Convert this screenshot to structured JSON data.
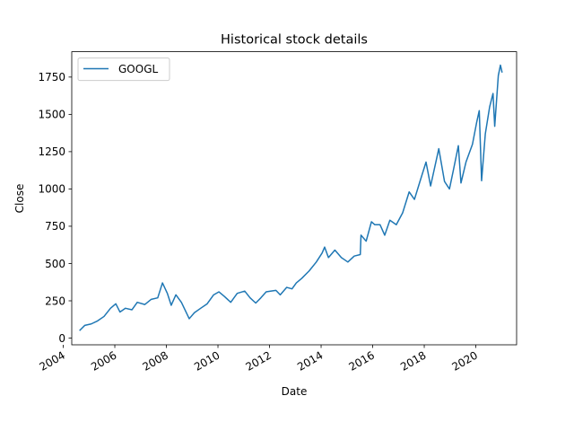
{
  "chart_data": {
    "type": "line",
    "title": "Historical stock details",
    "xlabel": "Date",
    "ylabel": "Close",
    "xlim": [
      "2004-05-01",
      "2021-08-01"
    ],
    "ylim": [
      -45,
      1920
    ],
    "x_ticks": [
      {
        "date": "2004-01-01",
        "label": "2004"
      },
      {
        "date": "2006-01-01",
        "label": "2006"
      },
      {
        "date": "2008-01-01",
        "label": "2008"
      },
      {
        "date": "2010-01-01",
        "label": "2010"
      },
      {
        "date": "2012-01-01",
        "label": "2012"
      },
      {
        "date": "2014-01-01",
        "label": "2014"
      },
      {
        "date": "2016-01-01",
        "label": "2016"
      },
      {
        "date": "2018-01-01",
        "label": "2018"
      },
      {
        "date": "2020-01-01",
        "label": "2020"
      }
    ],
    "y_ticks": [
      0,
      250,
      500,
      750,
      1000,
      1250,
      1500,
      1750
    ],
    "grid": false,
    "legend": {
      "position": "top-left"
    },
    "series": [
      {
        "name": "GOOGL",
        "color": "#1f77b4",
        "points": [
          [
            "2004-08-19",
            50
          ],
          [
            "2004-11-01",
            85
          ],
          [
            "2005-02-01",
            95
          ],
          [
            "2005-05-01",
            115
          ],
          [
            "2005-08-01",
            145
          ],
          [
            "2005-11-01",
            200
          ],
          [
            "2006-01-15",
            230
          ],
          [
            "2006-03-15",
            175
          ],
          [
            "2006-06-01",
            200
          ],
          [
            "2006-09-01",
            190
          ],
          [
            "2006-11-15",
            240
          ],
          [
            "2007-03-01",
            225
          ],
          [
            "2007-06-01",
            260
          ],
          [
            "2007-09-01",
            270
          ],
          [
            "2007-11-07",
            370
          ],
          [
            "2008-01-15",
            300
          ],
          [
            "2008-03-10",
            220
          ],
          [
            "2008-05-15",
            290
          ],
          [
            "2008-08-01",
            240
          ],
          [
            "2008-11-20",
            130
          ],
          [
            "2009-02-01",
            170
          ],
          [
            "2009-05-01",
            200
          ],
          [
            "2009-08-01",
            230
          ],
          [
            "2009-11-01",
            290
          ],
          [
            "2010-01-15",
            310
          ],
          [
            "2010-04-01",
            280
          ],
          [
            "2010-07-01",
            240
          ],
          [
            "2010-10-01",
            300
          ],
          [
            "2011-01-15",
            315
          ],
          [
            "2011-04-01",
            270
          ],
          [
            "2011-06-20",
            235
          ],
          [
            "2011-09-01",
            270
          ],
          [
            "2011-11-15",
            310
          ],
          [
            "2012-01-15",
            315
          ],
          [
            "2012-04-01",
            320
          ],
          [
            "2012-06-01",
            290
          ],
          [
            "2012-09-01",
            340
          ],
          [
            "2012-11-15",
            330
          ],
          [
            "2013-01-15",
            370
          ],
          [
            "2013-04-01",
            400
          ],
          [
            "2013-07-15",
            450
          ],
          [
            "2013-10-25",
            510
          ],
          [
            "2014-01-15",
            570
          ],
          [
            "2014-02-20",
            610
          ],
          [
            "2014-04-15",
            540
          ],
          [
            "2014-07-15",
            590
          ],
          [
            "2014-10-15",
            540
          ],
          [
            "2015-01-15",
            510
          ],
          [
            "2015-04-15",
            550
          ],
          [
            "2015-07-10",
            560
          ],
          [
            "2015-07-20",
            690
          ],
          [
            "2015-10-01",
            650
          ],
          [
            "2015-12-15",
            780
          ],
          [
            "2016-02-01",
            760
          ],
          [
            "2016-04-15",
            760
          ],
          [
            "2016-06-20",
            690
          ],
          [
            "2016-09-01",
            790
          ],
          [
            "2016-12-01",
            760
          ],
          [
            "2017-03-01",
            840
          ],
          [
            "2017-06-01",
            980
          ],
          [
            "2017-08-15",
            930
          ],
          [
            "2017-11-01",
            1050
          ],
          [
            "2018-01-26",
            1180
          ],
          [
            "2018-04-01",
            1020
          ],
          [
            "2018-07-26",
            1270
          ],
          [
            "2018-10-15",
            1050
          ],
          [
            "2018-12-24",
            1000
          ],
          [
            "2019-02-15",
            1120
          ],
          [
            "2019-04-29",
            1290
          ],
          [
            "2019-06-05",
            1040
          ],
          [
            "2019-08-15",
            1180
          ],
          [
            "2019-11-15",
            1300
          ],
          [
            "2020-01-15",
            1450
          ],
          [
            "2020-02-19",
            1525
          ],
          [
            "2020-03-23",
            1055
          ],
          [
            "2020-05-15",
            1370
          ],
          [
            "2020-07-15",
            1550
          ],
          [
            "2020-09-01",
            1640
          ],
          [
            "2020-09-25",
            1420
          ],
          [
            "2020-11-15",
            1760
          ],
          [
            "2020-12-15",
            1830
          ],
          [
            "2021-01-08",
            1780
          ]
        ]
      }
    ]
  }
}
